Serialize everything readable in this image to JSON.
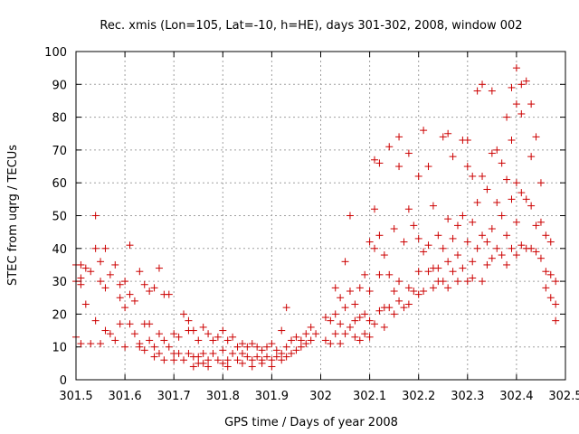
{
  "chart_data": {
    "type": "scatter",
    "title": "Rec. xmis (Lon=105, Lat=-10, h=HE), days 301-302, 2008, window 002",
    "xlabel": "GPS time / Days of year 2008",
    "ylabel": "STEC from uqrg / TECUs",
    "xlim": [
      301.5,
      302.5
    ],
    "ylim": [
      0,
      100
    ],
    "xticks": [
      "301.5",
      "301.6",
      "301.7",
      "301.8",
      "301.9",
      "302",
      "302.1",
      "302.2",
      "302.3",
      "302.4",
      "302.5"
    ],
    "yticks": [
      "0",
      "10",
      "20",
      "30",
      "40",
      "50",
      "60",
      "70",
      "80",
      "90",
      "100"
    ],
    "grid": true,
    "marker": "plus",
    "color": "#cc0000",
    "points": [
      [
        301.5,
        35
      ],
      [
        301.5,
        30
      ],
      [
        301.5,
        13
      ],
      [
        301.51,
        31
      ],
      [
        301.51,
        35
      ],
      [
        301.51,
        29
      ],
      [
        301.51,
        11
      ],
      [
        301.52,
        34
      ],
      [
        301.52,
        23
      ],
      [
        301.53,
        11
      ],
      [
        301.53,
        33
      ],
      [
        301.54,
        40
      ],
      [
        301.54,
        50
      ],
      [
        301.54,
        18
      ],
      [
        301.55,
        36
      ],
      [
        301.55,
        30
      ],
      [
        301.55,
        11
      ],
      [
        301.56,
        40
      ],
      [
        301.56,
        28
      ],
      [
        301.56,
        15
      ],
      [
        301.57,
        32
      ],
      [
        301.57,
        14
      ],
      [
        301.58,
        35
      ],
      [
        301.58,
        12
      ],
      [
        301.59,
        29
      ],
      [
        301.59,
        25
      ],
      [
        301.59,
        17
      ],
      [
        301.6,
        30
      ],
      [
        301.6,
        22
      ],
      [
        301.6,
        10
      ],
      [
        301.61,
        41
      ],
      [
        301.61,
        26
      ],
      [
        301.61,
        17
      ],
      [
        301.62,
        24
      ],
      [
        301.62,
        14
      ],
      [
        301.63,
        33
      ],
      [
        301.63,
        10
      ],
      [
        301.63,
        11
      ],
      [
        301.64,
        29
      ],
      [
        301.64,
        17
      ],
      [
        301.64,
        9
      ],
      [
        301.65,
        27
      ],
      [
        301.65,
        17
      ],
      [
        301.65,
        12
      ],
      [
        301.66,
        28
      ],
      [
        301.66,
        10
      ],
      [
        301.66,
        7
      ],
      [
        301.67,
        34
      ],
      [
        301.67,
        14
      ],
      [
        301.67,
        8
      ],
      [
        301.68,
        26
      ],
      [
        301.68,
        12
      ],
      [
        301.68,
        6
      ],
      [
        301.69,
        26
      ],
      [
        301.69,
        10
      ],
      [
        301.7,
        14
      ],
      [
        301.7,
        8
      ],
      [
        301.7,
        6
      ],
      [
        301.71,
        13
      ],
      [
        301.71,
        8
      ],
      [
        301.72,
        20
      ],
      [
        301.72,
        6
      ],
      [
        301.73,
        18
      ],
      [
        301.73,
        15
      ],
      [
        301.73,
        8
      ],
      [
        301.74,
        15
      ],
      [
        301.74,
        7
      ],
      [
        301.74,
        4
      ],
      [
        301.75,
        12
      ],
      [
        301.75,
        7
      ],
      [
        301.75,
        5
      ],
      [
        301.76,
        16
      ],
      [
        301.76,
        8
      ],
      [
        301.76,
        5
      ],
      [
        301.77,
        14
      ],
      [
        301.77,
        6
      ],
      [
        301.77,
        4
      ],
      [
        301.78,
        12
      ],
      [
        301.78,
        8
      ],
      [
        301.79,
        13
      ],
      [
        301.79,
        6
      ],
      [
        301.8,
        15
      ],
      [
        301.8,
        9
      ],
      [
        301.8,
        5
      ],
      [
        301.81,
        12
      ],
      [
        301.81,
        6
      ],
      [
        301.81,
        4
      ],
      [
        301.82,
        13
      ],
      [
        301.82,
        8
      ],
      [
        301.83,
        10
      ],
      [
        301.83,
        6
      ],
      [
        301.84,
        11
      ],
      [
        301.84,
        8
      ],
      [
        301.84,
        5
      ],
      [
        301.85,
        10
      ],
      [
        301.85,
        7
      ],
      [
        301.86,
        11
      ],
      [
        301.86,
        6
      ],
      [
        301.86,
        4
      ],
      [
        301.87,
        10
      ],
      [
        301.87,
        7
      ],
      [
        301.88,
        9
      ],
      [
        301.88,
        6
      ],
      [
        301.88,
        5
      ],
      [
        301.89,
        10
      ],
      [
        301.89,
        7
      ],
      [
        301.9,
        11
      ],
      [
        301.9,
        6
      ],
      [
        301.9,
        4
      ],
      [
        301.91,
        9
      ],
      [
        301.91,
        7
      ],
      [
        301.92,
        15
      ],
      [
        301.92,
        8
      ],
      [
        301.92,
        6
      ],
      [
        301.93,
        22
      ],
      [
        301.93,
        10
      ],
      [
        301.93,
        7
      ],
      [
        301.94,
        12
      ],
      [
        301.94,
        8
      ],
      [
        301.95,
        13
      ],
      [
        301.95,
        9
      ],
      [
        301.96,
        12
      ],
      [
        301.96,
        10
      ],
      [
        301.97,
        14
      ],
      [
        301.97,
        11
      ],
      [
        301.98,
        16
      ],
      [
        301.98,
        12
      ],
      [
        301.99,
        14
      ],
      [
        302.01,
        19
      ],
      [
        302.01,
        12
      ],
      [
        302.02,
        18
      ],
      [
        302.02,
        11
      ],
      [
        302.03,
        28
      ],
      [
        302.03,
        20
      ],
      [
        302.03,
        14
      ],
      [
        302.04,
        25
      ],
      [
        302.04,
        17
      ],
      [
        302.04,
        11
      ],
      [
        302.05,
        36
      ],
      [
        302.05,
        22
      ],
      [
        302.05,
        14
      ],
      [
        302.06,
        50
      ],
      [
        302.06,
        27
      ],
      [
        302.06,
        16
      ],
      [
        302.07,
        23
      ],
      [
        302.07,
        18
      ],
      [
        302.07,
        13
      ],
      [
        302.08,
        28
      ],
      [
        302.08,
        19
      ],
      [
        302.08,
        12
      ],
      [
        302.09,
        32
      ],
      [
        302.09,
        20
      ],
      [
        302.09,
        14
      ],
      [
        302.1,
        42
      ],
      [
        302.1,
        27
      ],
      [
        302.1,
        18
      ],
      [
        302.1,
        13
      ],
      [
        302.11,
        67
      ],
      [
        302.11,
        52
      ],
      [
        302.11,
        40
      ],
      [
        302.11,
        17
      ],
      [
        302.12,
        66
      ],
      [
        302.12,
        44
      ],
      [
        302.12,
        32
      ],
      [
        302.12,
        21
      ],
      [
        302.13,
        38
      ],
      [
        302.13,
        22
      ],
      [
        302.13,
        16
      ],
      [
        302.14,
        71
      ],
      [
        302.14,
        32
      ],
      [
        302.14,
        22
      ],
      [
        302.15,
        46
      ],
      [
        302.15,
        27
      ],
      [
        302.15,
        20
      ],
      [
        302.16,
        74
      ],
      [
        302.16,
        65
      ],
      [
        302.16,
        30
      ],
      [
        302.16,
        24
      ],
      [
        302.17,
        42
      ],
      [
        302.17,
        22
      ],
      [
        302.18,
        69
      ],
      [
        302.18,
        52
      ],
      [
        302.18,
        28
      ],
      [
        302.18,
        23
      ],
      [
        302.19,
        47
      ],
      [
        302.19,
        27
      ],
      [
        302.2,
        62
      ],
      [
        302.2,
        43
      ],
      [
        302.2,
        33
      ],
      [
        302.2,
        26
      ],
      [
        302.21,
        76
      ],
      [
        302.21,
        39
      ],
      [
        302.21,
        27
      ],
      [
        302.22,
        65
      ],
      [
        302.22,
        41
      ],
      [
        302.22,
        33
      ],
      [
        302.23,
        53
      ],
      [
        302.23,
        34
      ],
      [
        302.23,
        28
      ],
      [
        302.24,
        44
      ],
      [
        302.24,
        34
      ],
      [
        302.24,
        30
      ],
      [
        302.25,
        74
      ],
      [
        302.25,
        40
      ],
      [
        302.25,
        30
      ],
      [
        302.26,
        75
      ],
      [
        302.26,
        49
      ],
      [
        302.26,
        36
      ],
      [
        302.26,
        28
      ],
      [
        302.27,
        68
      ],
      [
        302.27,
        43
      ],
      [
        302.27,
        33
      ],
      [
        302.28,
        47
      ],
      [
        302.28,
        38
      ],
      [
        302.28,
        30
      ],
      [
        302.29,
        73
      ],
      [
        302.29,
        50
      ],
      [
        302.29,
        34
      ],
      [
        302.3,
        73
      ],
      [
        302.3,
        65
      ],
      [
        302.3,
        42
      ],
      [
        302.3,
        30
      ],
      [
        302.31,
        62
      ],
      [
        302.31,
        48
      ],
      [
        302.31,
        36
      ],
      [
        302.31,
        31
      ],
      [
        302.32,
        88
      ],
      [
        302.32,
        54
      ],
      [
        302.32,
        40
      ],
      [
        302.33,
        90
      ],
      [
        302.33,
        62
      ],
      [
        302.33,
        44
      ],
      [
        302.33,
        30
      ],
      [
        302.34,
        58
      ],
      [
        302.34,
        42
      ],
      [
        302.34,
        35
      ],
      [
        302.35,
        88
      ],
      [
        302.35,
        69
      ],
      [
        302.35,
        46
      ],
      [
        302.35,
        37
      ],
      [
        302.36,
        70
      ],
      [
        302.36,
        54
      ],
      [
        302.36,
        40
      ],
      [
        302.37,
        66
      ],
      [
        302.37,
        50
      ],
      [
        302.37,
        38
      ],
      [
        302.38,
        80
      ],
      [
        302.38,
        61
      ],
      [
        302.38,
        44
      ],
      [
        302.38,
        35
      ],
      [
        302.39,
        89
      ],
      [
        302.39,
        73
      ],
      [
        302.39,
        55
      ],
      [
        302.39,
        40
      ],
      [
        302.4,
        95
      ],
      [
        302.4,
        84
      ],
      [
        302.4,
        60
      ],
      [
        302.4,
        48
      ],
      [
        302.4,
        38
      ],
      [
        302.41,
        90
      ],
      [
        302.41,
        81
      ],
      [
        302.41,
        57
      ],
      [
        302.41,
        41
      ],
      [
        302.42,
        91
      ],
      [
        302.42,
        55
      ],
      [
        302.42,
        40
      ],
      [
        302.43,
        84
      ],
      [
        302.43,
        68
      ],
      [
        302.43,
        53
      ],
      [
        302.43,
        40
      ],
      [
        302.44,
        74
      ],
      [
        302.44,
        47
      ],
      [
        302.44,
        39
      ],
      [
        302.45,
        60
      ],
      [
        302.45,
        48
      ],
      [
        302.45,
        37
      ],
      [
        302.46,
        44
      ],
      [
        302.46,
        33
      ],
      [
        302.46,
        28
      ],
      [
        302.47,
        42
      ],
      [
        302.47,
        32
      ],
      [
        302.47,
        25
      ],
      [
        302.48,
        30
      ],
      [
        302.48,
        23
      ],
      [
        302.48,
        18
      ]
    ]
  }
}
